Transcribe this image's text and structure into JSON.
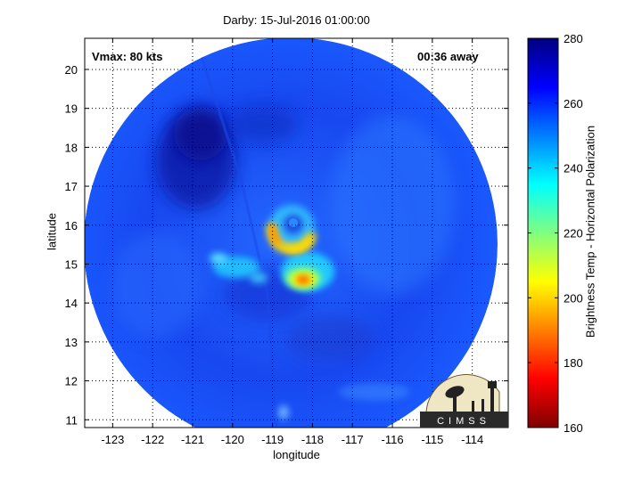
{
  "chart_data": {
    "type": "heatmap",
    "title": "Darby: 15-Jul-2016 01:00:00",
    "xlabel": "longitude",
    "ylabel": "latitude",
    "xlim": [
      -123.7,
      -113.1
    ],
    "ylim": [
      10.8,
      20.8
    ],
    "x_ticks": [
      -123,
      -122,
      -121,
      -120,
      -119,
      -118,
      -117,
      -116,
      -115,
      -114
    ],
    "y_ticks": [
      11,
      12,
      13,
      14,
      15,
      16,
      17,
      18,
      19,
      20
    ],
    "grid": true,
    "grid_style": "dotted",
    "annotations": {
      "vmax": "Vmax: 80 kts",
      "time_away": "00:36 away"
    },
    "colorbar": {
      "label": "Brightness Temp - Horizontal Polarization",
      "range": [
        160,
        280
      ],
      "ticks": [
        160,
        180,
        200,
        220,
        240,
        260,
        280
      ],
      "colormap": "jet"
    },
    "swath": {
      "center_lon": -118.5,
      "center_lat": 15.5,
      "radius_deg": 5.2
    },
    "features": [
      {
        "name": "eye",
        "lon": -118.6,
        "lat": 16.1,
        "value": 262
      },
      {
        "name": "eyewall-ring",
        "lon": -118.55,
        "lat": 15.9,
        "value": 215
      },
      {
        "name": "rainband-core",
        "lon": -118.1,
        "lat": 14.55,
        "value": 185
      },
      {
        "name": "western-rainband",
        "lon": -120.2,
        "lat": 14.9,
        "value": 238
      },
      {
        "name": "northwest-cold-region",
        "lon": -120.9,
        "lat": 17.9,
        "value": 276
      }
    ],
    "logo_text": "CIMSS"
  }
}
